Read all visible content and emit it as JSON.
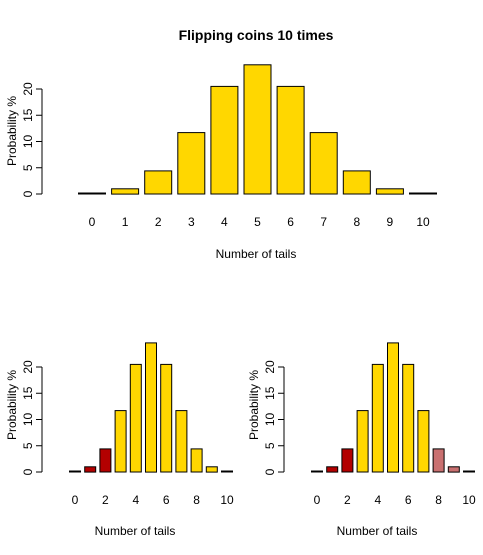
{
  "chart_data": [
    {
      "type": "bar",
      "title": "Flipping coins 10 times",
      "xlabel": "Number of tails",
      "ylabel": "Probability %",
      "categories": [
        "0",
        "1",
        "2",
        "3",
        "4",
        "5",
        "6",
        "7",
        "8",
        "9",
        "10"
      ],
      "values": [
        0.1,
        1.0,
        4.4,
        11.7,
        20.5,
        24.6,
        20.5,
        11.7,
        4.4,
        1.0,
        0.1
      ],
      "yticks": [
        "0",
        "5",
        "10",
        "15",
        "20"
      ],
      "ylim": [
        0,
        25
      ],
      "bar_colors": [
        "#ffd700",
        "#ffd700",
        "#ffd700",
        "#ffd700",
        "#ffd700",
        "#ffd700",
        "#ffd700",
        "#ffd700",
        "#ffd700",
        "#ffd700",
        "#ffd700"
      ]
    },
    {
      "type": "bar",
      "title": "",
      "xlabel": "Number of tails",
      "ylabel": "Probability %",
      "categories": [
        "0",
        "1",
        "2",
        "3",
        "4",
        "5",
        "6",
        "7",
        "8",
        "9",
        "10"
      ],
      "x_tick_labels": [
        "0",
        "2",
        "4",
        "6",
        "8",
        "10"
      ],
      "values": [
        0.1,
        1.0,
        4.4,
        11.7,
        20.5,
        24.6,
        20.5,
        11.7,
        4.4,
        1.0,
        0.1
      ],
      "yticks": [
        "0",
        "5",
        "10",
        "15",
        "20"
      ],
      "ylim": [
        0,
        25
      ],
      "bar_colors": [
        "#b30000",
        "#b30000",
        "#b30000",
        "#ffd700",
        "#ffd700",
        "#ffd700",
        "#ffd700",
        "#ffd700",
        "#ffd700",
        "#ffd700",
        "#ffd700"
      ]
    },
    {
      "type": "bar",
      "title": "",
      "xlabel": "Number of tails",
      "ylabel": "Probability %",
      "categories": [
        "0",
        "1",
        "2",
        "3",
        "4",
        "5",
        "6",
        "7",
        "8",
        "9",
        "10"
      ],
      "x_tick_labels": [
        "0",
        "2",
        "4",
        "6",
        "8",
        "10"
      ],
      "values": [
        0.1,
        1.0,
        4.4,
        11.7,
        20.5,
        24.6,
        20.5,
        11.7,
        4.4,
        1.0,
        0.1
      ],
      "yticks": [
        "0",
        "5",
        "10",
        "15",
        "20"
      ],
      "ylim": [
        0,
        25
      ],
      "bar_colors": [
        "#b30000",
        "#b30000",
        "#b30000",
        "#ffd700",
        "#ffd700",
        "#ffd700",
        "#ffd700",
        "#ffd700",
        "#c97070",
        "#c97070",
        "#c97070"
      ]
    }
  ]
}
